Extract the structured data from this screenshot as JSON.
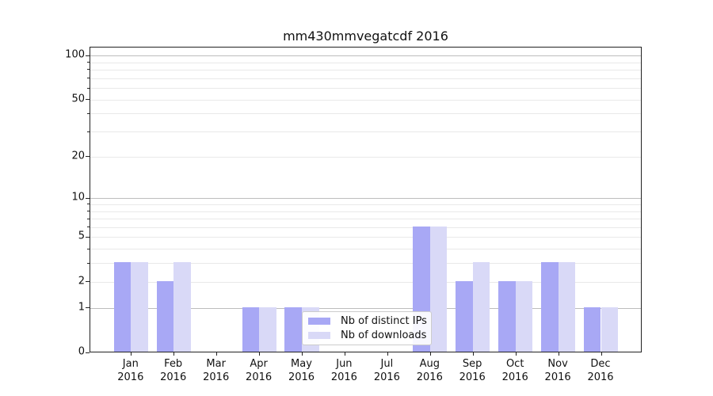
{
  "chart_data": {
    "type": "bar",
    "title": "mm430mmvegatcdf 2016",
    "year_label": "2016",
    "categories": [
      "Jan",
      "Feb",
      "Mar",
      "Apr",
      "May",
      "Jun",
      "Jul",
      "Aug",
      "Sep",
      "Oct",
      "Nov",
      "Dec"
    ],
    "series": [
      {
        "name": "Nb of distinct IPs",
        "color": "#a8a8f5",
        "values": [
          3,
          2,
          0,
          1,
          1,
          0,
          0,
          6,
          2,
          2,
          3,
          1
        ]
      },
      {
        "name": "Nb of downloads",
        "color": "#d9d9f7",
        "values": [
          3,
          3,
          0,
          1,
          1,
          0,
          0,
          6,
          3,
          2,
          3,
          1
        ]
      }
    ],
    "yscale": "log1p",
    "yticks": [
      0,
      1,
      2,
      5,
      10,
      20,
      50,
      100
    ],
    "ylim": [
      0,
      100
    ],
    "xlabel": "",
    "ylabel": "",
    "grid": true,
    "legend_position": "lower center",
    "colors": {
      "bar_distinct_ips": "#a8a8f5",
      "bar_downloads": "#d9d9f7",
      "grid_major": "#bdbdbd",
      "grid_minor": "#e9e9e9",
      "axis": "#222222",
      "legend_border": "#cccccc"
    }
  }
}
